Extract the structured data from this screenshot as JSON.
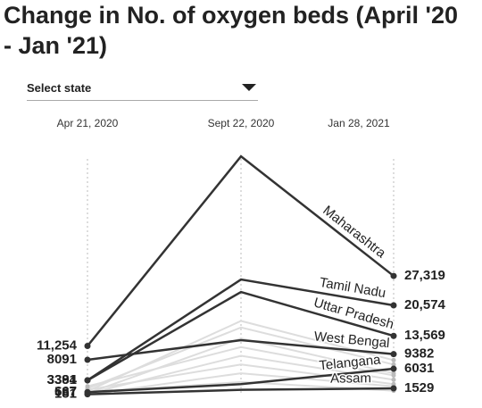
{
  "dropdown": "Select state",
  "chart_data": {
    "type": "slope",
    "title": "Change in No. of oxygen beds (April '20 - Jan '21)",
    "categories": [
      "Apr 21, 2020",
      "Sept 22, 2020",
      "Jan 28, 2021"
    ],
    "ylim": [
      0,
      56000
    ],
    "series": [
      {
        "color": "#dddddd",
        "values": [
          900,
          17000,
          8000
        ],
        "value_labels": [
          null,
          null,
          null
        ]
      },
      {
        "color": "#dddddd",
        "values": [
          1500,
          15500,
          7000
        ],
        "value_labels": [
          null,
          null,
          null
        ]
      },
      {
        "color": "#dddddd",
        "values": [
          400,
          13000,
          5000
        ],
        "value_labels": [
          null,
          null,
          null
        ]
      },
      {
        "color": "#dddddd",
        "values": [
          2000,
          11000,
          4500
        ],
        "value_labels": [
          null,
          null,
          null
        ]
      },
      {
        "color": "#dddddd",
        "values": [
          300,
          9000,
          3500
        ],
        "value_labels": [
          null,
          null,
          null
        ]
      },
      {
        "color": "#dddddd",
        "values": [
          1200,
          7000,
          2500
        ],
        "value_labels": [
          null,
          null,
          null
        ]
      },
      {
        "color": "#dddddd",
        "values": [
          100,
          5000,
          2000
        ],
        "value_labels": [
          null,
          null,
          null
        ]
      },
      {
        "color": "#dddddd",
        "values": [
          587,
          3000,
          1000
        ],
        "value_labels": [
          "587",
          null,
          null
        ]
      },
      {
        "name": "Maharashtra",
        "color": "#333333",
        "values": [
          11254,
          54750,
          27319
        ],
        "value_labels": [
          "11,254",
          null,
          "27,319"
        ]
      },
      {
        "name": "Tamil Nadu",
        "color": "#333333",
        "values": [
          3394,
          26500,
          20574
        ],
        "value_labels": [
          "3394",
          null,
          "20,574"
        ]
      },
      {
        "name": "Uttar Pradesh",
        "color": "#333333",
        "values": [
          3381,
          23640,
          13569
        ],
        "value_labels": [
          "3381",
          null,
          "13,569"
        ]
      },
      {
        "name": "West Bengal",
        "color": "#333333",
        "values": [
          8091,
          12590,
          9382
        ],
        "value_labels": [
          "8091",
          null,
          "9382"
        ]
      },
      {
        "name": "Telangana",
        "color": "#333333",
        "values": [
          667,
          2500,
          6031
        ],
        "value_labels": [
          "667",
          null,
          "6031"
        ]
      },
      {
        "name": "Assam",
        "color": "#333333",
        "values": [
          181,
          1200,
          1529
        ],
        "value_labels": [
          "181",
          null,
          "1529"
        ]
      }
    ]
  }
}
